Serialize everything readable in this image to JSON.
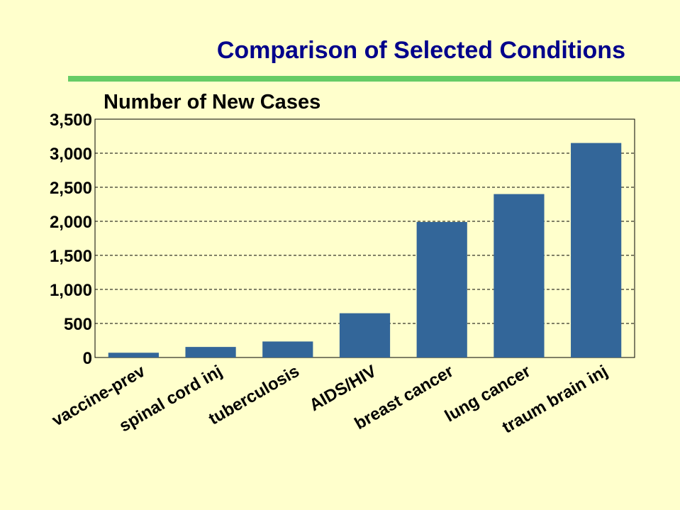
{
  "slide": {
    "title": "Comparison of Selected Conditions",
    "title_color": "#00008B",
    "rule_color": "#66CC66",
    "background": "#FFFFCC"
  },
  "chart_data": {
    "type": "bar",
    "title": "",
    "xlabel": "",
    "ylabel": "Number of New Cases",
    "categories": [
      "vaccine-prev",
      "spinal cord inj",
      "tuberculosis",
      "AIDS/HIV",
      "breast cancer",
      "lung cancer",
      "traum brain inj"
    ],
    "values": [
      70,
      155,
      235,
      650,
      1990,
      2400,
      3150
    ],
    "ylim": [
      0,
      3500
    ],
    "yticks": [
      0,
      500,
      1000,
      1500,
      2000,
      2500,
      3000,
      3500
    ],
    "ytick_labels": [
      "0",
      "500",
      "1,000",
      "1,500",
      "2,000",
      "2,500",
      "3,000",
      "3,500"
    ],
    "grid": "horizontal dashed",
    "bar_color": "#336699"
  }
}
